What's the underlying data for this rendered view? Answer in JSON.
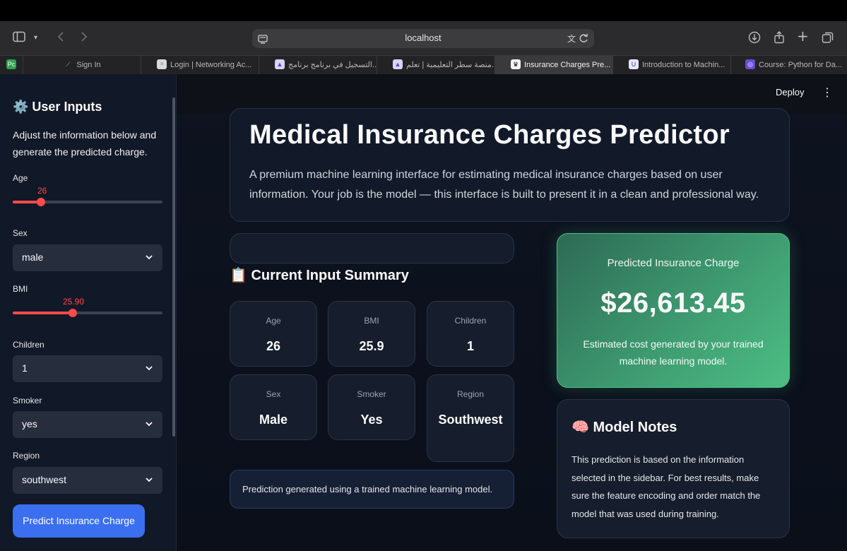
{
  "browser": {
    "address": "localhost",
    "tabs": [
      {
        "label": "",
        "favicon": "Pc"
      },
      {
        "label": "Sign In",
        "favicon": "logo"
      },
      {
        "label": "Login | Networking Ac...",
        "favicon": "cisco"
      },
      {
        "label": "التسجيل في برنامج برنامج...",
        "favicon": "satr"
      },
      {
        "label": "منصة سطر التعليمية | تعلم...",
        "favicon": "satr"
      },
      {
        "label": "Insurance Charges Pre...",
        "favicon": "crown",
        "active": true
      },
      {
        "label": "Introduction to Machin...",
        "favicon": "u"
      },
      {
        "label": "Course: Python for Da...",
        "favicon": "course"
      }
    ]
  },
  "header": {
    "deploy_label": "Deploy",
    "menu_icon": "kebab-menu-icon"
  },
  "sidebar": {
    "title": "⚙️ User Inputs",
    "description": "Adjust the information below and generate the predicted charge.",
    "age": {
      "label": "Age",
      "value": "26",
      "fraction": 0.19
    },
    "sex": {
      "label": "Sex",
      "value": "male"
    },
    "bmi": {
      "label": "BMI",
      "value": "25.90",
      "fraction": 0.4
    },
    "children": {
      "label": "Children",
      "value": "1"
    },
    "smoker": {
      "label": "Smoker",
      "value": "yes"
    },
    "region": {
      "label": "Region",
      "value": "southwest"
    },
    "predict_button": "Predict Insurance Charge"
  },
  "hero": {
    "title": "Medical Insurance Charges Predictor",
    "subtitle": "A premium machine learning interface for estimating medical insurance charges based on user information. Your job is the model — this interface is built to present it in a clean and professional way."
  },
  "summary": {
    "title": "📋 Current Input Summary",
    "cards": [
      {
        "label": "Age",
        "value": "26"
      },
      {
        "label": "BMI",
        "value": "25.9"
      },
      {
        "label": "Children",
        "value": "1"
      },
      {
        "label": "Sex",
        "value": "Male"
      },
      {
        "label": "Smoker",
        "value": "Yes"
      },
      {
        "label": "Region",
        "value": "Southwest"
      }
    ],
    "note": "Prediction generated using a trained machine learning model."
  },
  "prediction": {
    "label": "Predicted Insurance Charge",
    "value": "$26,613.45",
    "description": "Estimated cost generated by your trained machine learning model."
  },
  "model_notes": {
    "title": "🧠 Model Notes",
    "text": "This prediction is based on the information selected in the sidebar. For best results, make sure the feature encoding and order match the model that was used during training."
  },
  "colors": {
    "accent": "#ff4b4b",
    "button": "#3b6ff0",
    "prediction_card": "#3e9a70"
  }
}
